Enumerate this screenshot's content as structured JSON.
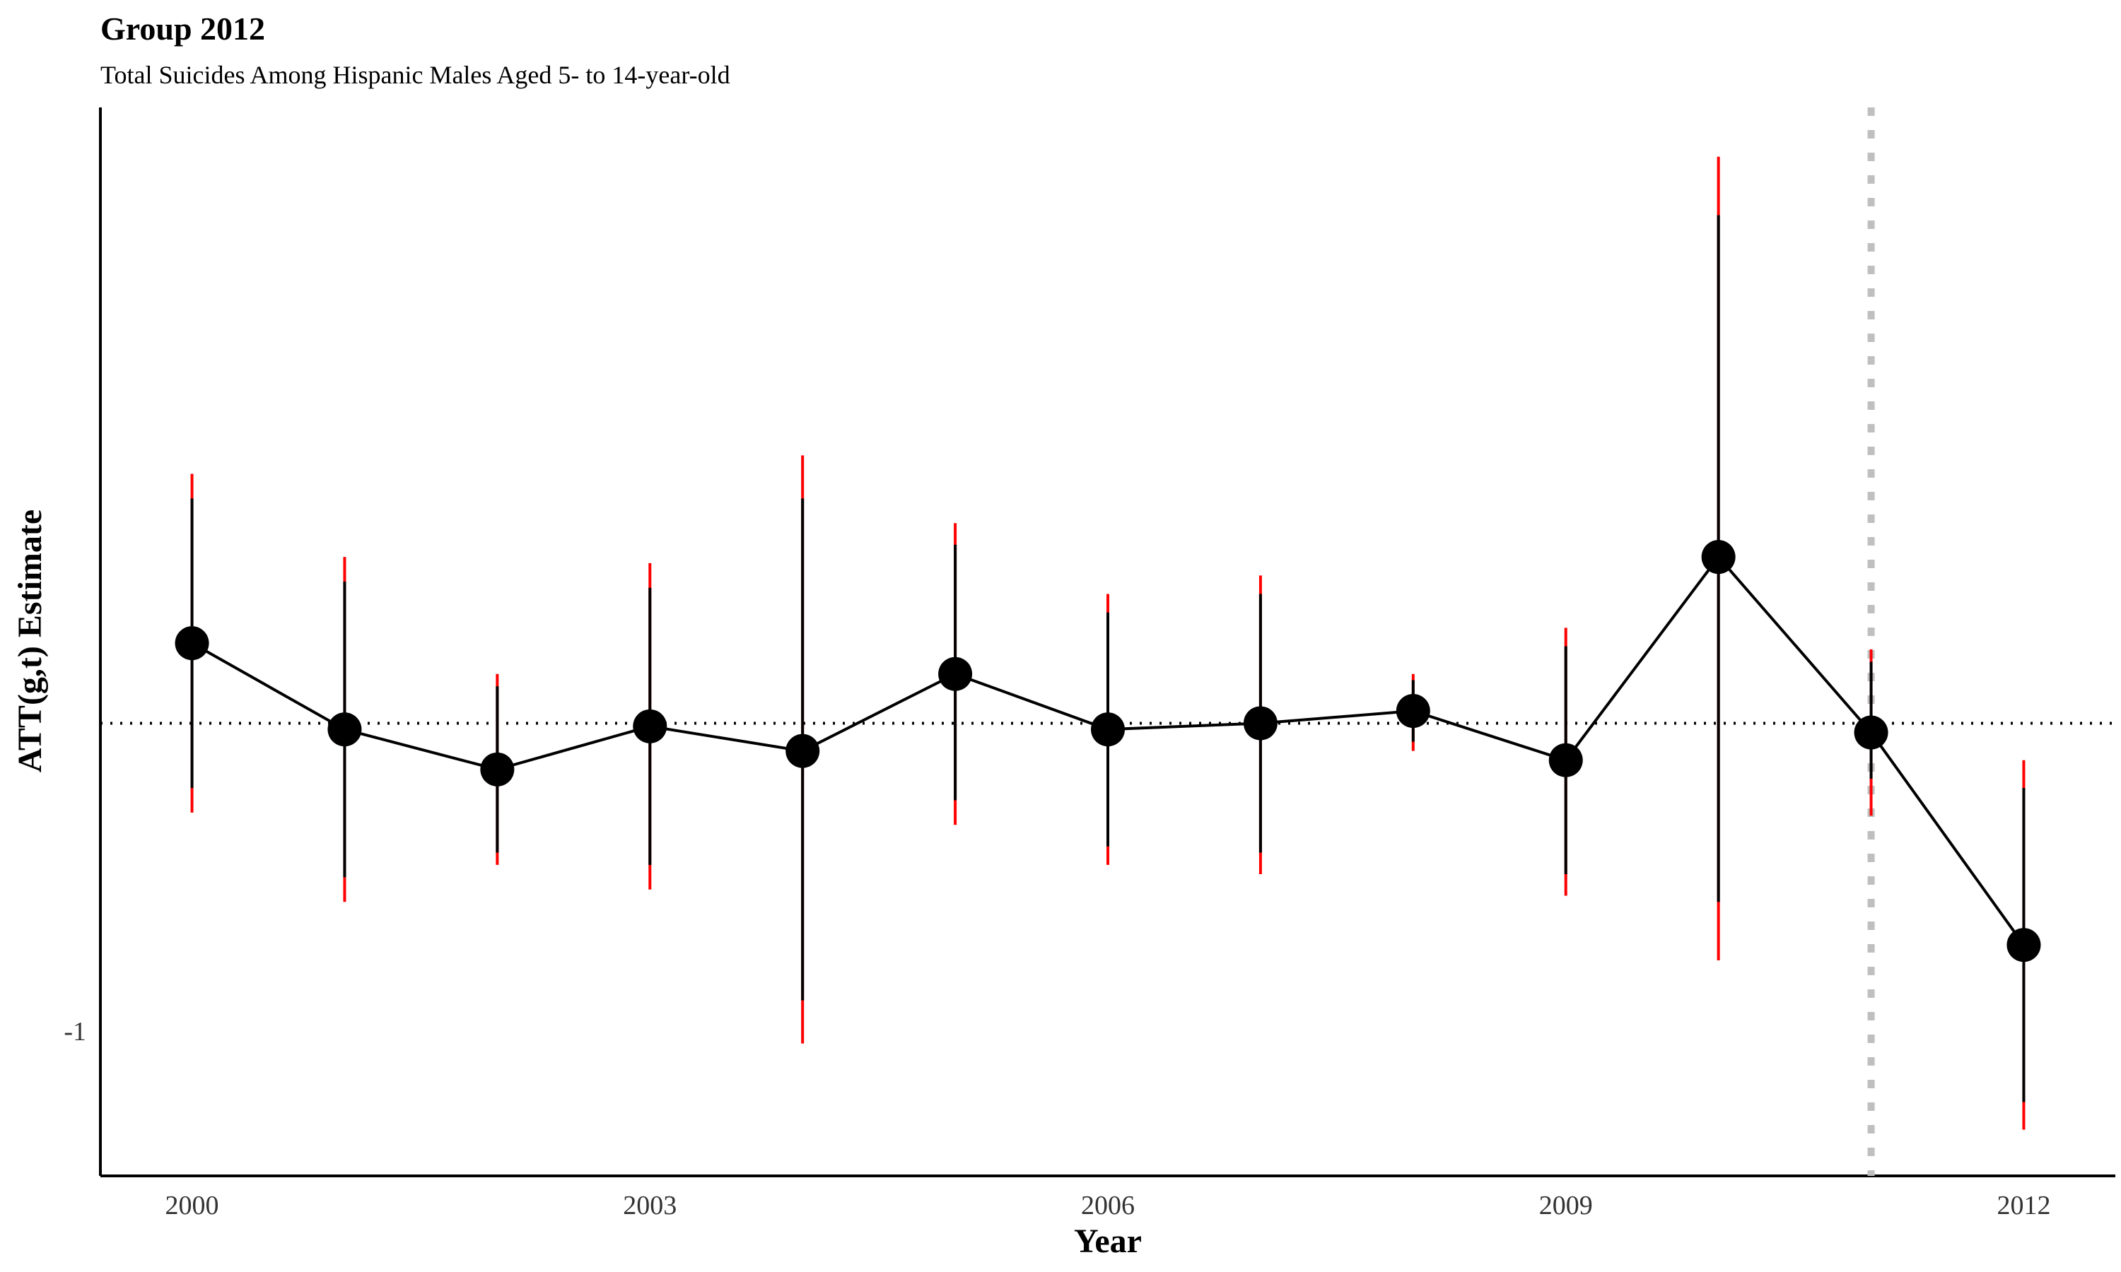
{
  "chart_data": {
    "type": "scatter",
    "title": "Group 2012",
    "subtitle": "Total Suicides Among Hispanic Males Aged 5- to 14-year-old",
    "xlabel": "Year",
    "ylabel": "ATT(g,t) Estimate",
    "x_ticks": [
      2000,
      2003,
      2006,
      2009,
      2012
    ],
    "y_ticks": [
      -1
    ],
    "xlim": [
      1999.4,
      2012.6
    ],
    "ylim": [
      -1.47,
      2.0
    ],
    "reference_line_y": 0,
    "treatment_line_x": 2011,
    "grid": false,
    "colors": {
      "point": "#000000",
      "line": "#000000",
      "pointwise_ci": "#000000",
      "uniform_ci": "#ff0000",
      "reference": "#000000",
      "treatment": "#bfbfbf"
    },
    "series": [
      {
        "x": [
          2000,
          2001,
          2002,
          2003,
          2004,
          2005,
          2006,
          2007,
          2008,
          2009,
          2010,
          2011,
          2012
        ],
        "estimate": [
          0.26,
          -0.02,
          -0.15,
          -0.01,
          -0.09,
          0.16,
          -0.02,
          0.0,
          0.04,
          -0.12,
          0.54,
          -0.03,
          -0.72
        ],
        "ci_low": [
          -0.21,
          -0.5,
          -0.42,
          -0.46,
          -0.9,
          -0.25,
          -0.4,
          -0.42,
          -0.06,
          -0.49,
          -0.58,
          -0.18,
          -1.23
        ],
        "ci_high": [
          0.73,
          0.46,
          0.12,
          0.44,
          0.73,
          0.58,
          0.36,
          0.42,
          0.14,
          0.25,
          1.65,
          0.2,
          -0.21
        ],
        "ub_low": [
          -0.29,
          -0.58,
          -0.46,
          -0.54,
          -1.04,
          -0.33,
          -0.46,
          -0.49,
          -0.09,
          -0.56,
          -0.77,
          -0.3,
          -1.32
        ],
        "ub_high": [
          0.81,
          0.54,
          0.16,
          0.52,
          0.87,
          0.65,
          0.42,
          0.48,
          0.16,
          0.31,
          1.84,
          0.24,
          -0.12
        ]
      }
    ]
  }
}
